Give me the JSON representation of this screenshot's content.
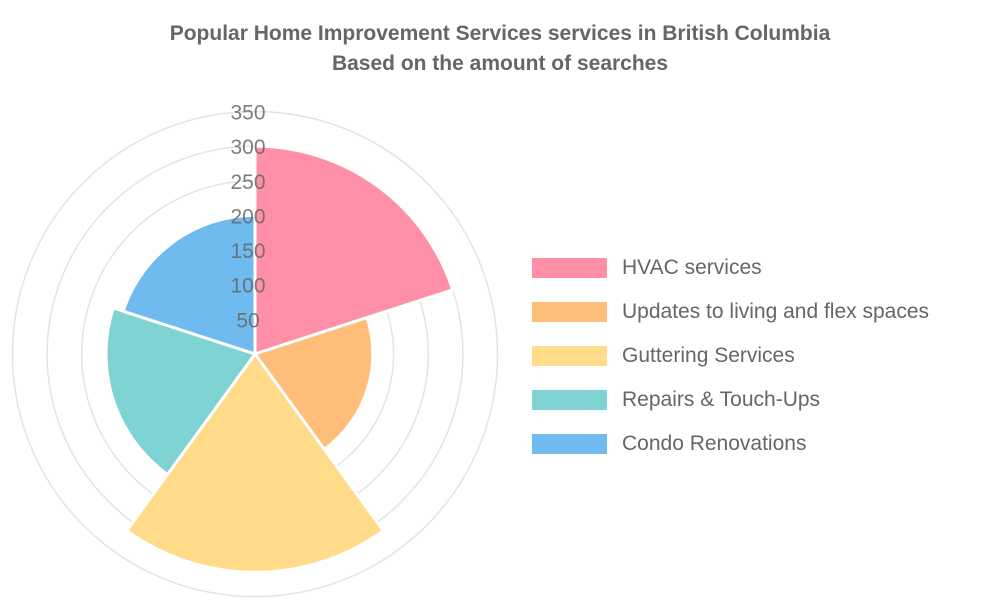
{
  "chart_data": {
    "type": "polarArea",
    "title": "Popular Home Improvement Services services in British Columbia",
    "subtitle": "Based on the amount of searches",
    "categories": [
      "HVAC services",
      "Updates to living and flex spaces",
      "Guttering Services",
      "Repairs & Touch-Ups",
      "Condo Renovations"
    ],
    "values": [
      300,
      170,
      315,
      215,
      200
    ],
    "colors": [
      "#ff8fa6",
      "#ffbd7a",
      "#ffdb8a",
      "#7fd3d2",
      "#6fbaee"
    ],
    "r_ticks": [
      "50",
      "100",
      "150",
      "200",
      "250",
      "300",
      "350"
    ],
    "rlim": [
      0,
      350
    ],
    "grid": true,
    "legend_position": "right"
  }
}
